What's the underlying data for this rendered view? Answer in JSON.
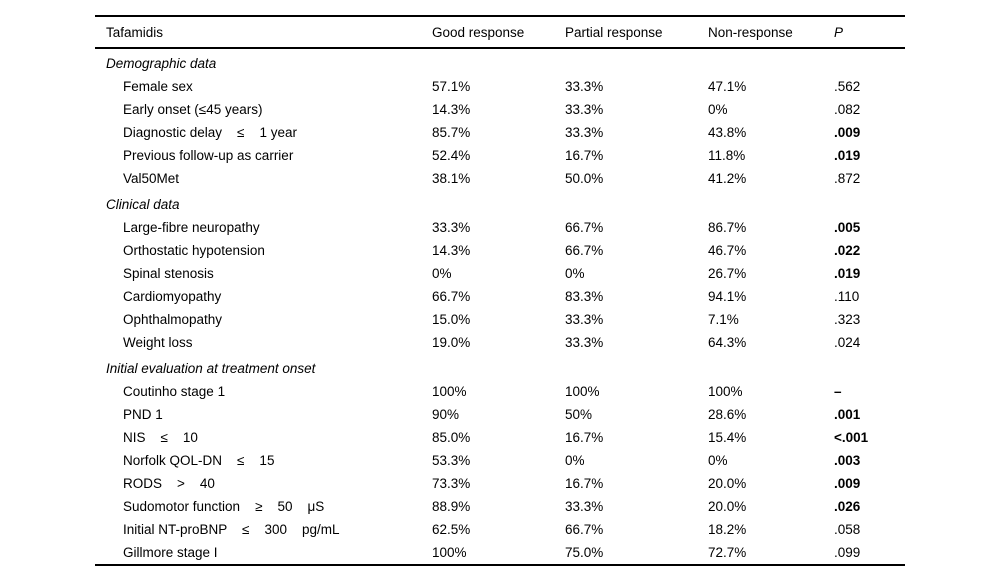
{
  "colors": {
    "background": "#ffffff",
    "text": "#000000",
    "rule": "#000000"
  },
  "table": {
    "columns": [
      "Tafamidis",
      "Good response",
      "Partial response",
      "Non-response",
      "P"
    ],
    "sections": [
      {
        "title": "Demographic data",
        "rows": [
          {
            "label": "Female sex",
            "values": [
              "57.1%",
              "33.3%",
              "47.1%"
            ],
            "p": ".562",
            "p_bold": false
          },
          {
            "label": "Early onset (≤45 years)",
            "values": [
              "14.3%",
              "33.3%",
              "0%"
            ],
            "p": ".082",
            "p_bold": false
          },
          {
            "label": "Diagnostic delay    ≤    1 year",
            "values": [
              "85.7%",
              "33.3%",
              "43.8%"
            ],
            "p": ".009",
            "p_bold": true
          },
          {
            "label": "Previous follow-up as carrier",
            "values": [
              "52.4%",
              "16.7%",
              "11.8%"
            ],
            "p": ".019",
            "p_bold": true
          },
          {
            "label": "Val50Met",
            "values": [
              "38.1%",
              "50.0%",
              "41.2%"
            ],
            "p": ".872",
            "p_bold": false
          }
        ]
      },
      {
        "title": "Clinical data",
        "rows": [
          {
            "label": "Large-fibre neuropathy",
            "values": [
              "33.3%",
              "66.7%",
              "86.7%"
            ],
            "p": ".005",
            "p_bold": true
          },
          {
            "label": "Orthostatic hypotension",
            "values": [
              "14.3%",
              "66.7%",
              "46.7%"
            ],
            "p": ".022",
            "p_bold": true
          },
          {
            "label": "Spinal stenosis",
            "values": [
              "0%",
              "0%",
              "26.7%"
            ],
            "p": ".019",
            "p_bold": true
          },
          {
            "label": "Cardiomyopathy",
            "values": [
              "66.7%",
              "83.3%",
              "94.1%"
            ],
            "p": ".110",
            "p_bold": false
          },
          {
            "label": "Ophthalmopathy",
            "values": [
              "15.0%",
              "33.3%",
              "7.1%"
            ],
            "p": ".323",
            "p_bold": false
          },
          {
            "label": "Weight loss",
            "values": [
              "19.0%",
              "33.3%",
              "64.3%"
            ],
            "p": ".024",
            "p_bold": false
          }
        ]
      },
      {
        "title": "Initial evaluation at treatment onset",
        "rows": [
          {
            "label": "Coutinho stage 1",
            "values": [
              "100%",
              "100%",
              "100%"
            ],
            "p": "–",
            "p_bold": true
          },
          {
            "label": "PND 1",
            "values": [
              "90%",
              "50%",
              "28.6%"
            ],
            "p": ".001",
            "p_bold": true
          },
          {
            "label": "NIS    ≤    10",
            "values": [
              "85.0%",
              "16.7%",
              "15.4%"
            ],
            "p": "<.001",
            "p_bold": true
          },
          {
            "label": "Norfolk QOL-DN    ≤    15",
            "values": [
              "53.3%",
              "0%",
              "0%"
            ],
            "p": ".003",
            "p_bold": true
          },
          {
            "label": "RODS    >    40",
            "values": [
              "73.3%",
              "16.7%",
              "20.0%"
            ],
            "p": ".009",
            "p_bold": true
          },
          {
            "label": "Sudomotor function    ≥    50    μS",
            "values": [
              "88.9%",
              "33.3%",
              "20.0%"
            ],
            "p": ".026",
            "p_bold": true
          },
          {
            "label": "Initial NT-proBNP    ≤    300    pg/mL",
            "values": [
              "62.5%",
              "66.7%",
              "18.2%"
            ],
            "p": ".058",
            "p_bold": false
          },
          {
            "label": "Gillmore stage I",
            "values": [
              "100%",
              "75.0%",
              "72.7%"
            ],
            "p": ".099",
            "p_bold": false
          }
        ]
      }
    ]
  }
}
